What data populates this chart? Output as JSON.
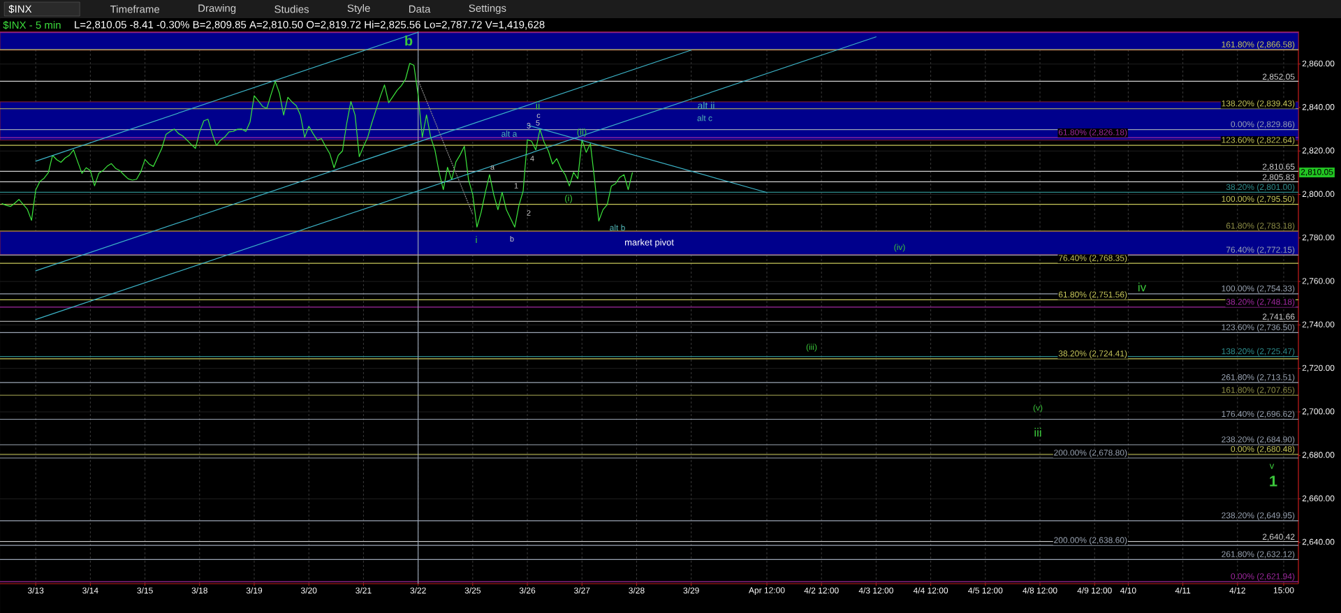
{
  "chart_data": {
    "type": "line",
    "title": "$INX - 5 min",
    "subtitle": "L=2,810.05 -8.41 -0.30% B=2,809.85 A=2,810.50 O=2,819.72 Hi=2,825.56 Lo=2,787.72 V=1,419,628",
    "categories": [
      null,
      null,
      null,
      null,
      null,
      null,
      null,
      null,
      "3/13",
      null,
      null,
      null,
      null,
      null,
      null,
      null,
      null,
      null,
      null,
      null,
      null,
      "3/14",
      null,
      null,
      null,
      null,
      null,
      null,
      null,
      null,
      null,
      null,
      null,
      null,
      "3/15",
      null,
      null,
      null,
      null,
      null,
      null,
      null,
      null,
      null,
      null,
      null,
      null,
      "3/18",
      null,
      null,
      null,
      null,
      null,
      null,
      null,
      null,
      null,
      null,
      null,
      null,
      "3/19",
      null,
      null,
      null,
      null,
      null,
      null,
      null,
      null,
      null,
      null,
      null,
      null,
      "3/20",
      null,
      null,
      null,
      null,
      null,
      null,
      null,
      null,
      null,
      null,
      null,
      null,
      "3/21",
      null,
      null,
      null,
      null,
      null,
      null,
      null,
      null,
      null,
      null,
      null,
      null,
      "3/22",
      null,
      null,
      null,
      null,
      null,
      null,
      null,
      null,
      null,
      null,
      null,
      null,
      "3/25",
      null,
      null,
      null,
      null,
      null,
      null,
      null,
      null,
      null,
      null,
      null,
      null,
      "3/26",
      null,
      null,
      null,
      null,
      null,
      null,
      null,
      null,
      null,
      null,
      null,
      null,
      "3/27",
      null,
      null,
      null,
      null,
      null,
      null,
      null,
      null,
      null,
      null,
      null,
      null,
      "3/28",
      null,
      null,
      null,
      null,
      null,
      null,
      null,
      null,
      null,
      null,
      null,
      null,
      "3/29",
      null,
      null,
      null,
      null,
      null,
      null,
      null,
      null,
      null,
      null,
      null,
      null,
      null,
      null,
      null,
      null,
      null,
      "Apr 12:00",
      null,
      null,
      null,
      null,
      null,
      null,
      null,
      null,
      null,
      null,
      null,
      null,
      "4/2 12:00",
      null,
      null,
      null,
      null,
      null,
      null,
      null,
      null,
      null,
      null,
      null,
      null,
      "4/3 12:00",
      null,
      null,
      null,
      null,
      null,
      null,
      null,
      null,
      null,
      null,
      null,
      null,
      "4/4 12:00",
      null,
      null,
      null,
      null,
      null,
      null,
      null,
      null,
      null,
      null,
      null,
      null,
      "4/5 12:00",
      null,
      null,
      null,
      null,
      null,
      null,
      null,
      null,
      null,
      null,
      null,
      null,
      "4/8 12:00",
      null,
      null,
      null,
      null,
      null,
      null,
      null,
      null,
      null,
      null,
      null,
      null,
      "4/9 12:00",
      null,
      null,
      null,
      null,
      null,
      null,
      null,
      "4/10",
      null,
      null,
      null,
      null,
      null,
      null,
      null,
      null,
      null,
      null,
      null,
      null,
      "4/11",
      null,
      null,
      null,
      null,
      null,
      null,
      null,
      null,
      null,
      null,
      null,
      null,
      "4/12",
      null,
      null,
      null,
      null,
      null,
      null,
      null,
      null,
      null,
      null,
      "15:00",
      null,
      null,
      null
    ],
    "ylim": [
      2621,
      2875
    ],
    "yticks": [
      {
        "value": 2640,
        "label": "2,640.00"
      },
      {
        "value": 2660,
        "label": "2,660.00"
      },
      {
        "value": 2680,
        "label": "2,680.00"
      },
      {
        "value": 2700,
        "label": "2,700.00"
      },
      {
        "value": 2720,
        "label": "2,720.00"
      },
      {
        "value": 2740,
        "label": "2,740.00"
      },
      {
        "value": 2760,
        "label": "2,760.00"
      },
      {
        "value": 2780,
        "label": "2,780.00"
      },
      {
        "value": 2800,
        "label": "2,800.00"
      },
      {
        "value": 2820,
        "label": "2,820.00"
      },
      {
        "value": 2840,
        "label": "2,840.00"
      },
      {
        "value": 2860,
        "label": "2,860.00"
      }
    ],
    "grid": true,
    "series": [
      {
        "color": "#3ce63c",
        "values": [
          2795.8,
          2795,
          2794.5,
          2796,
          2797.7,
          2795.5,
          2793.2,
          2788.1,
          2802.1,
          2806,
          2807.5,
          2810,
          2818,
          2816,
          2814.8,
          2816.8,
          2818,
          2820.5,
          2815,
          2809.7,
          2812.3,
          2811,
          2804,
          2809.7,
          2811,
          2813,
          2814.2,
          2812,
          2811,
          2809,
          2807.2,
          2806.6,
          2807,
          2810.4,
          2816.1,
          2814,
          2812.9,
          2817,
          2821.2,
          2827.6,
          2829,
          2830.1,
          2828,
          2826.9,
          2825,
          2823,
          2821.2,
          2828.8,
          2833.9,
          2834.6,
          2828,
          2822.5,
          2825,
          2826.5,
          2828.8,
          2829,
          2830,
          2830.1,
          2829,
          2833.3,
          2845.4,
          2843,
          2840.5,
          2839.6,
          2846,
          2852,
          2846.6,
          2836.5,
          2844.7,
          2842.5,
          2840.9,
          2836.5,
          2826.3,
          2831.4,
          2828,
          2825,
          2825.7,
          2822,
          2818.7,
          2812.3,
          2818,
          2820,
          2832.6,
          2842.8,
          2836.5,
          2817.4,
          2822,
          2826.3,
          2833,
          2839,
          2845,
          2850.4,
          2842.2,
          2845,
          2847.9,
          2850,
          2853,
          2860.3,
          2859.4,
          2845.8,
          2826.3,
          2836.6,
          2826.3,
          2820.5,
          2810.2,
          2802.2,
          2812.5,
          2806.8,
          2815,
          2818.2,
          2822.2,
          2806.8,
          2800,
          2785,
          2791.8,
          2801,
          2809.1,
          2799.9,
          2793,
          2801,
          2793,
          2789,
          2785,
          2795,
          2801.6,
          2825.2,
          2824.5,
          2820.5,
          2829.9,
          2824,
          2820,
          2814,
          2816.5,
          2812,
          2809.1,
          2803.9,
          2810.2,
          2807.3,
          2825.2,
          2819.4,
          2823.4,
          2806.8,
          2787.8,
          2793,
          2795.3,
          2803.9,
          2805,
          2807.9,
          2809.1,
          2802.2,
          2810.05,
          null,
          null,
          null,
          null,
          null,
          null,
          null,
          null,
          null,
          null,
          null,
          null,
          null,
          null,
          null,
          null,
          null,
          null,
          null,
          null,
          null,
          null,
          null,
          null,
          null,
          null,
          null,
          null,
          null,
          null,
          null,
          null,
          null,
          null,
          null,
          null,
          null,
          null,
          null,
          null,
          null,
          null,
          null,
          null,
          null,
          null,
          null,
          null,
          null,
          null,
          null,
          null,
          null,
          null,
          null,
          null,
          null,
          null,
          null,
          null,
          null,
          null,
          null,
          null,
          null,
          null,
          null,
          null,
          null,
          null,
          null,
          null,
          null,
          null,
          null,
          null,
          null,
          null,
          null,
          null,
          null,
          null,
          null,
          null,
          null,
          null,
          null,
          null,
          null,
          null,
          null,
          null,
          null,
          null,
          null,
          null,
          null,
          null,
          null,
          null,
          null,
          null,
          null,
          null,
          null,
          null,
          null,
          null,
          null,
          null,
          null,
          null,
          null,
          null,
          null,
          null,
          null,
          null,
          null,
          null,
          null,
          null,
          null,
          null,
          null,
          null,
          null,
          null,
          null,
          null,
          null,
          null,
          null,
          null,
          null,
          null,
          null,
          null,
          null,
          null,
          null,
          null,
          null,
          null,
          null,
          null,
          null,
          null,
          null,
          null,
          null,
          null,
          null,
          null,
          null,
          null,
          null,
          null
        ]
      },
      {
        "type": "line",
        "color": "#3cb4c8",
        "x": [
          "3/13",
          "3/22"
        ],
        "values": [
          2815.3,
          2874.6
        ]
      },
      {
        "type": "line",
        "color": "#3cb4c8",
        "x": [
          "3/13",
          "3/29"
        ],
        "values": [
          2764.9,
          2866.4
        ]
      },
      {
        "type": "line",
        "color": "#3cb4c8",
        "x": [
          "3/13",
          "4/3 12:00"
        ],
        "values": [
          2742.5,
          2872.5
        ]
      },
      {
        "type": "line",
        "color": "#3cb4c8",
        "x": [
          "3/26",
          "Apr 12:00"
        ],
        "values": [
          2831.9,
          2800.9
        ]
      },
      {
        "type": "line",
        "color": "#8c8c8c",
        "line_style": "dotted",
        "x": [
          "3/22",
          "3/25"
        ],
        "values": [
          2852.6,
          2790.9
        ]
      }
    ],
    "bands": [
      {
        "axis": "y",
        "from": 2866.4,
        "to": 2874.8,
        "color": "#00008c"
      },
      {
        "axis": "y",
        "from": 2825,
        "to": 2842.6,
        "color": "#00008c"
      },
      {
        "axis": "y",
        "from": 2772.3,
        "to": 2783.0,
        "label": "market pivot",
        "color": "#00008c"
      }
    ],
    "ref_lines": [
      {
        "axis": "y",
        "value": 2874.5,
        "color": "#8c1e8c"
      },
      {
        "axis": "y",
        "value": 2866.58,
        "label": "161.80% (2,866.58)",
        "color": "#c8c85a"
      },
      {
        "axis": "y",
        "value": 2852.05,
        "label": "2,852.05",
        "color": "#d2d2d2"
      },
      {
        "axis": "y",
        "value": 2839.43,
        "label": "138.20% (2,839.43)",
        "color": "#c8c85a"
      },
      {
        "axis": "y",
        "value": 2829.86,
        "label": "0.00% (2,829.86)",
        "color": "#9ba5b4"
      },
      {
        "axis": "y",
        "value": 2826.18,
        "label": "61.80% (2,826.18)",
        "color": "#a028a0"
      },
      {
        "axis": "y",
        "value": 2822.64,
        "label": "123.60% (2,822.64)",
        "color": "#c8c85a"
      },
      {
        "axis": "y",
        "value": 2810.65,
        "label": "2,810.65",
        "color": "#d2d2d2"
      },
      {
        "axis": "y",
        "value": 2805.83,
        "label": "2,805.83",
        "color": "#d2d2d2"
      },
      {
        "axis": "y",
        "value": 2801.0,
        "label": "38.20% (2,801.00)",
        "color": "#2d8c8c"
      },
      {
        "axis": "y",
        "value": 2795.5,
        "label": "100.00% (2,795.50)",
        "color": "#c8c85a"
      },
      {
        "axis": "y",
        "value": 2783.18,
        "label": "61.80% (2,783.18)",
        "color": "#8c8c46"
      },
      {
        "axis": "y",
        "value": 2772.15,
        "label": "76.40% (2,772.15)",
        "color": "#9ba5b4"
      },
      {
        "axis": "y",
        "value": 2768.35,
        "label": "76.40% (2,768.35)",
        "color": "#c8c85a"
      },
      {
        "axis": "y",
        "value": 2754.33,
        "label": "100.00% (2,754.33)",
        "color": "#9ba5b4"
      },
      {
        "axis": "y",
        "value": 2751.56,
        "label": "61.80% (2,751.56)",
        "color": "#c8c85a"
      },
      {
        "axis": "y",
        "value": 2748.18,
        "label": "38.20% (2,748.18)",
        "color": "#a028a0"
      },
      {
        "axis": "y",
        "value": 2741.66,
        "label": "2,741.66",
        "color": "#d2d2d2"
      },
      {
        "axis": "y",
        "value": 2736.5,
        "label": "123.60% (2,736.50)",
        "color": "#9ba5b4"
      },
      {
        "axis": "y",
        "value": 2725.47,
        "label": "138.20% (2,725.47)",
        "color": "#2d8c8c"
      },
      {
        "axis": "y",
        "value": 2724.41,
        "label": "38.20% (2,724.41)",
        "color": "#c8c85a"
      },
      {
        "axis": "y",
        "value": 2713.51,
        "label": "261.80% (2,713.51)",
        "color": "#9ba5b4"
      },
      {
        "axis": "y",
        "value": 2707.65,
        "label": "161.80% (2,707.65)",
        "color": "#8c8c46"
      },
      {
        "axis": "y",
        "value": 2696.62,
        "label": "176.40% (2,696.62)",
        "color": "#9ba5b4"
      },
      {
        "axis": "y",
        "value": 2684.9,
        "label": "238.20% (2,684.90)",
        "color": "#9ba5b4"
      },
      {
        "axis": "y",
        "value": 2680.48,
        "label": "0.00% (2,680.48)",
        "color": "#c8c85a"
      },
      {
        "axis": "y",
        "value": 2678.8,
        "label": "200.00% (2,678.80)",
        "color": "#9ba5b4"
      },
      {
        "axis": "y",
        "value": 2649.95,
        "label": "238.20% (2,649.95)",
        "color": "#9ba5b4"
      },
      {
        "axis": "y",
        "value": 2640.42,
        "label": "2,640.42",
        "color": "#d2d2d2"
      },
      {
        "axis": "y",
        "value": 2638.6,
        "label": "200.00% (2,638.60)",
        "color": "#9ba5b4"
      },
      {
        "axis": "y",
        "value": 2632.12,
        "label": "261.80% (2,632.12)",
        "color": "#9ba5b4"
      },
      {
        "axis": "y",
        "value": 2621.94,
        "label": "0.00% (2,621.94)",
        "color": "#a028a0"
      },
      {
        "axis": "x",
        "value": "3/22",
        "color": "#9ba5b4"
      }
    ],
    "annotations": [
      "$INX",
      "Timeframe",
      "Drawing",
      "Studies",
      "Style",
      "Data",
      "Settings",
      "alt a",
      "alt ii",
      "alt c",
      "(iv)",
      "(iii)",
      "(v)",
      "iii",
      "iv",
      "v",
      "1",
      "b",
      "i",
      "a",
      "b",
      "1",
      "2",
      "3",
      "4",
      "5",
      "c",
      "ii",
      "(ii)",
      "(i)",
      "alt b",
      "2,810.05"
    ]
  }
}
